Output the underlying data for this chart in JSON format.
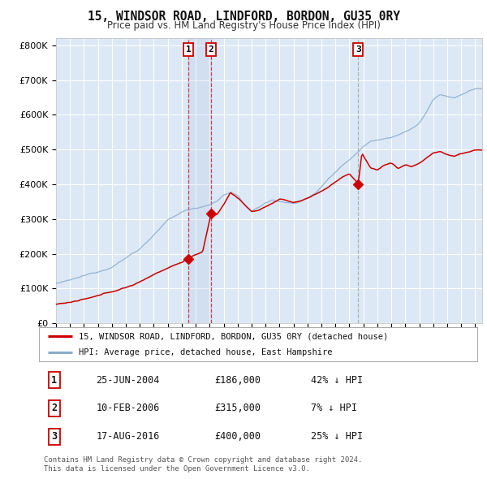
{
  "title": "15, WINDSOR ROAD, LINDFORD, BORDON, GU35 0RY",
  "subtitle": "Price paid vs. HM Land Registry's House Price Index (HPI)",
  "ylabel_ticks": [
    "£0",
    "£100K",
    "£200K",
    "£300K",
    "£400K",
    "£500K",
    "£600K",
    "£700K",
    "£800K"
  ],
  "ytick_values": [
    0,
    100000,
    200000,
    300000,
    400000,
    500000,
    600000,
    700000,
    800000
  ],
  "ylim": [
    0,
    820000
  ],
  "xlim_start": 1995.0,
  "xlim_end": 2025.5,
  "transactions": [
    {
      "label": "1",
      "date": 2004.48,
      "price": 186000
    },
    {
      "label": "2",
      "date": 2006.11,
      "price": 315000
    },
    {
      "label": "3",
      "date": 2016.63,
      "price": 400000
    }
  ],
  "transaction_details": [
    {
      "num": "1",
      "date_str": "25-JUN-2004",
      "price_str": "£186,000",
      "rel": "42% ↓ HPI"
    },
    {
      "num": "2",
      "date_str": "10-FEB-2006",
      "price_str": "£315,000",
      "rel": "7% ↓ HPI"
    },
    {
      "num": "3",
      "date_str": "17-AUG-2016",
      "price_str": "£400,000",
      "rel": "25% ↓ HPI"
    }
  ],
  "legend_entries": [
    {
      "label": "15, WINDSOR ROAD, LINDFORD, BORDON, GU35 0RY (detached house)",
      "color": "#cc0000"
    },
    {
      "label": "HPI: Average price, detached house, East Hampshire",
      "color": "#88aacc"
    }
  ],
  "footnote": "Contains HM Land Registry data © Crown copyright and database right 2024.\nThis data is licensed under the Open Government Licence v3.0.",
  "bg_color": "#dce8f5",
  "grid_color": "#ffffff",
  "hpi_color": "#88aacc",
  "price_color": "#cc0000",
  "sale_line_color": "#cc0000",
  "sale3_line_color": "#999999"
}
